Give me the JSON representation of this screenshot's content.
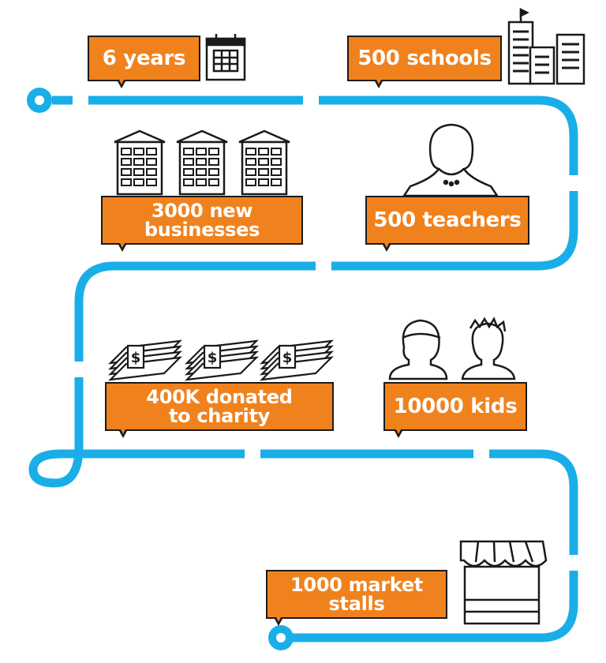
{
  "colors": {
    "path": "#19aee8",
    "label_fill": "#f0821e",
    "label_border": "#1a1a1a",
    "label_text": "#ffffff",
    "icon_stroke": "#1a1a1a"
  },
  "milestones": [
    {
      "text": "6 years",
      "icon": "calendar-icon"
    },
    {
      "text": "500 schools",
      "icon": "school-buildings-icon"
    },
    {
      "text": "3000 new\nbusinesses",
      "icon": "office-buildings-icon"
    },
    {
      "text": "500 teachers",
      "icon": "teacher-icon"
    },
    {
      "text": "400K donated\nto charity",
      "icon": "money-stacks-icon"
    },
    {
      "text": "10000 kids",
      "icon": "kids-icon"
    },
    {
      "text": "1000 market\nstalls",
      "icon": "market-stall-icon"
    }
  ]
}
